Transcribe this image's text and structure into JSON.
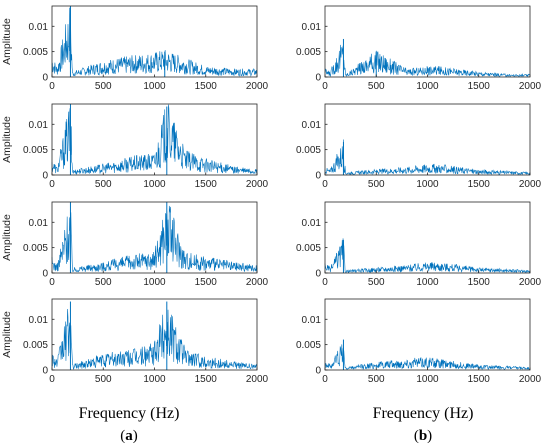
{
  "figure": {
    "column_labels": [
      {
        "xlabel": "Frequency (Hz)",
        "open": "(",
        "letter": "a",
        "close": ")"
      },
      {
        "xlabel": "Frequency (Hz)",
        "open": "(",
        "letter": "b",
        "close": ")"
      }
    ],
    "line_color": "#0072BD"
  },
  "chart_data": [
    {
      "type": "line",
      "column": "a",
      "row": 1,
      "ylabel": "Amplitude",
      "xlim": [
        0,
        2000
      ],
      "ylim": [
        0,
        0.014
      ],
      "xticks": [
        "0",
        "500",
        "1000",
        "1500",
        "2000"
      ],
      "yticks": [
        "0",
        "0.005",
        "0.01"
      ],
      "series": [
        {
          "x_hz": [
            0,
            50,
            180,
            200,
            500,
            800,
            1000,
            1100,
            1300,
            1500,
            1800,
            2000
          ],
          "values": [
            0.004,
            0.002,
            0.014,
            0.001,
            0.003,
            0.004,
            0.0045,
            0.005,
            0.0035,
            0.002,
            0.0015,
            0.0015
          ]
        }
      ]
    },
    {
      "type": "line",
      "column": "a",
      "row": 2,
      "ylabel": "Amplitude",
      "xlim": [
        0,
        2000
      ],
      "ylim": [
        0,
        0.014
      ],
      "xticks": [
        "0",
        "500",
        "1000",
        "1500",
        "2000"
      ],
      "yticks": [
        "0",
        "0.005",
        "0.01"
      ],
      "series": [
        {
          "x_hz": [
            0,
            50,
            180,
            200,
            500,
            800,
            1000,
            1120,
            1300,
            1500,
            1800,
            2000
          ],
          "values": [
            0.003,
            0.0015,
            0.014,
            0.001,
            0.002,
            0.0035,
            0.004,
            0.0135,
            0.0045,
            0.003,
            0.0015,
            0.001
          ]
        }
      ]
    },
    {
      "type": "line",
      "column": "a",
      "row": 3,
      "ylabel": "Amplitude",
      "xlim": [
        0,
        2000
      ],
      "ylim": [
        0,
        0.014
      ],
      "xticks": [
        "0",
        "500",
        "1000",
        "1500",
        "2000"
      ],
      "yticks": [
        "0",
        "0.005",
        "0.01"
      ],
      "series": [
        {
          "x_hz": [
            0,
            50,
            180,
            200,
            500,
            800,
            1000,
            1120,
            1300,
            1500,
            1800,
            2000
          ],
          "values": [
            0.003,
            0.0015,
            0.014,
            0.001,
            0.002,
            0.0035,
            0.004,
            0.014,
            0.004,
            0.003,
            0.002,
            0.0015
          ]
        }
      ]
    },
    {
      "type": "line",
      "column": "a",
      "row": 4,
      "ylabel": "Amplitude",
      "xlim": [
        0,
        2000
      ],
      "ylim": [
        0,
        0.014
      ],
      "xticks": [
        "0",
        "500",
        "1000",
        "1500",
        "2000"
      ],
      "yticks": [
        "0",
        "0.005",
        "0.01"
      ],
      "series": [
        {
          "x_hz": [
            0,
            50,
            180,
            200,
            500,
            800,
            1000,
            1120,
            1300,
            1500,
            1800,
            2000
          ],
          "values": [
            0.0035,
            0.002,
            0.0135,
            0.001,
            0.003,
            0.004,
            0.005,
            0.0135,
            0.004,
            0.0025,
            0.0015,
            0.001
          ]
        }
      ]
    },
    {
      "type": "line",
      "column": "b",
      "row": 1,
      "xlim": [
        0,
        2000
      ],
      "ylim": [
        0,
        0.014
      ],
      "xticks": [
        "0",
        "500",
        "1000",
        "1500",
        "2000"
      ],
      "yticks": [
        "0",
        "0.005",
        "0.01"
      ],
      "series": [
        {
          "x_hz": [
            0,
            50,
            180,
            200,
            500,
            800,
            1000,
            1100,
            1300,
            1500,
            1800,
            2000
          ],
          "values": [
            0.0015,
            0.001,
            0.0075,
            0.0005,
            0.005,
            0.0015,
            0.002,
            0.002,
            0.0015,
            0.001,
            0.0005,
            0.0005
          ]
        }
      ]
    },
    {
      "type": "line",
      "column": "b",
      "row": 2,
      "xlim": [
        0,
        2000
      ],
      "ylim": [
        0,
        0.014
      ],
      "xticks": [
        "0",
        "500",
        "1000",
        "1500",
        "2000"
      ],
      "yticks": [
        "0",
        "0.005",
        "0.01"
      ],
      "series": [
        {
          "x_hz": [
            0,
            50,
            180,
            200,
            500,
            800,
            1000,
            1100,
            1300,
            1500,
            1800,
            2000
          ],
          "values": [
            0.0015,
            0.001,
            0.0065,
            0.0005,
            0.001,
            0.0015,
            0.002,
            0.002,
            0.0015,
            0.001,
            0.0007,
            0.0005
          ]
        }
      ]
    },
    {
      "type": "line",
      "column": "b",
      "row": 3,
      "xlim": [
        0,
        2000
      ],
      "ylim": [
        0,
        0.014
      ],
      "xticks": [
        "0",
        "500",
        "1000",
        "1500",
        "2000"
      ],
      "yticks": [
        "0",
        "0.005",
        "0.01"
      ],
      "series": [
        {
          "x_hz": [
            0,
            50,
            180,
            200,
            500,
            800,
            1000,
            1100,
            1300,
            1500,
            1800,
            2000
          ],
          "values": [
            0.002,
            0.001,
            0.0065,
            0.0005,
            0.001,
            0.0015,
            0.002,
            0.002,
            0.0015,
            0.001,
            0.0007,
            0.0005
          ]
        }
      ]
    },
    {
      "type": "line",
      "column": "b",
      "row": 4,
      "xlim": [
        0,
        2000
      ],
      "ylim": [
        0,
        0.014
      ],
      "xticks": [
        "0",
        "500",
        "1000",
        "1500",
        "2000"
      ],
      "yticks": [
        "0",
        "0.005",
        "0.01"
      ],
      "series": [
        {
          "x_hz": [
            0,
            50,
            180,
            200,
            500,
            800,
            1000,
            1100,
            1300,
            1500,
            1800,
            2000
          ],
          "values": [
            0.002,
            0.001,
            0.006,
            0.0005,
            0.0015,
            0.002,
            0.0025,
            0.002,
            0.0015,
            0.001,
            0.0007,
            0.0005
          ]
        }
      ]
    }
  ]
}
